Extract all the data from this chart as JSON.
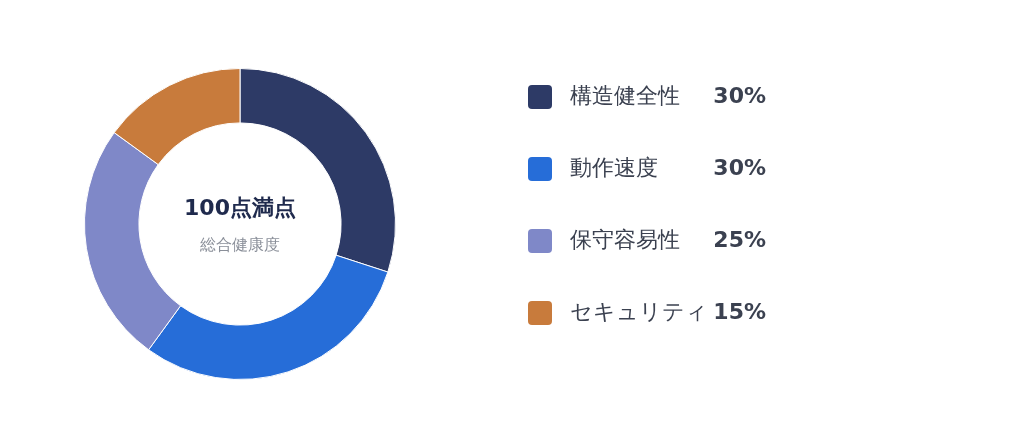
{
  "chart_data": {
    "type": "donut",
    "categories": [
      "構造健全性",
      "動作速度",
      "保守容易性",
      "セキュリティ"
    ],
    "values": [
      30,
      30,
      25,
      15
    ],
    "value_labels": [
      "30%",
      "30%",
      "25%",
      "15%"
    ],
    "colors": [
      "#2d3a66",
      "#266dd8",
      "#7f88c8",
      "#c87b3c"
    ],
    "legend": "right",
    "annotations": [
      "100点満点",
      "総合健康度"
    ]
  }
}
